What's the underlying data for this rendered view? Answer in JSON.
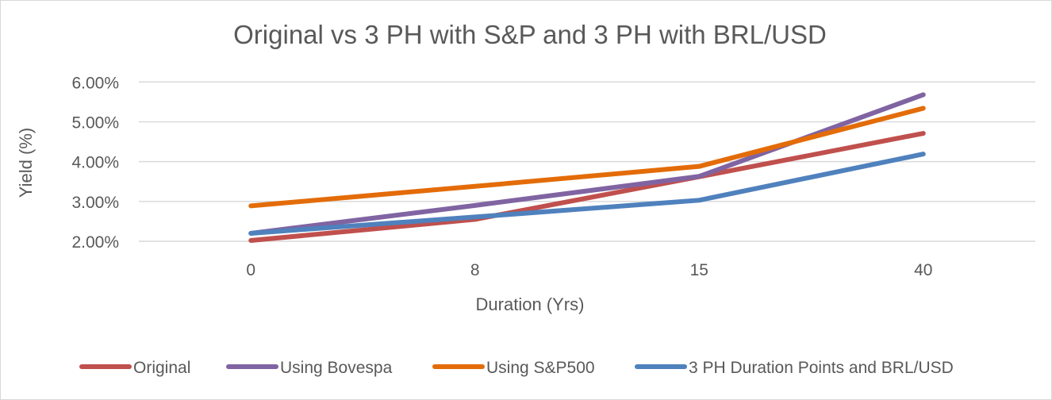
{
  "chart_data": {
    "type": "line",
    "title": "Original vs 3 PH with S&P and 3 PH with BRL/USD",
    "xlabel": "Duration (Yrs)",
    "ylabel": "Yield (%)",
    "categories": [
      "0",
      "8",
      "15",
      "40"
    ],
    "yticks": [
      "2.00%",
      "3.00%",
      "4.00%",
      "5.00%",
      "6.00%"
    ],
    "ylim": [
      2,
      6
    ],
    "grid": true,
    "legend_position": "bottom",
    "series": [
      {
        "name": "Original",
        "color": "#C0504D",
        "values": [
          2.02,
          2.55,
          3.62,
          4.71
        ]
      },
      {
        "name": "Using Bovespa",
        "color": "#8064A2",
        "values": [
          2.2,
          2.9,
          3.63,
          5.68
        ]
      },
      {
        "name": "Using S&P500",
        "color": "#E36C09",
        "values": [
          2.89,
          3.38,
          3.88,
          5.34
        ]
      },
      {
        "name": "3 PH Duration Points and BRL/USD",
        "color": "#4F81BD",
        "values": [
          2.2,
          2.61,
          3.03,
          4.19
        ]
      }
    ]
  }
}
